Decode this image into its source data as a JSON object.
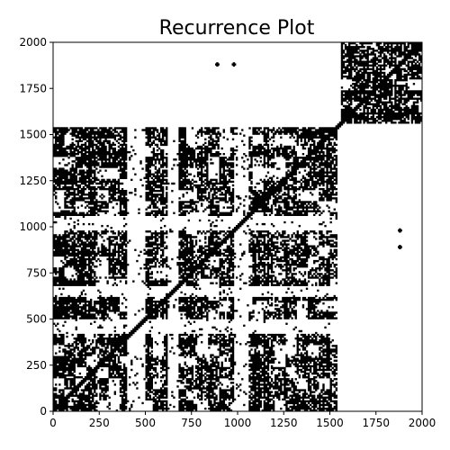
{
  "chart_data": {
    "type": "heatmap",
    "title": "Recurrence Plot",
    "xlabel": "",
    "ylabel": "",
    "xlim": [
      0,
      2000
    ],
    "ylim": [
      0,
      2000
    ],
    "x_ticks": [
      "0",
      "250",
      "500",
      "750",
      "1000",
      "1250",
      "1500",
      "1750",
      "2000"
    ],
    "y_ticks": [
      "0",
      "250",
      "500",
      "750",
      "1000",
      "1250",
      "1500",
      "1750",
      "2000"
    ],
    "grid": false,
    "legend": "none",
    "colormap": [
      "#ffffff",
      "#000000"
    ],
    "regimes": [
      {
        "range": [
          0,
          1540
        ],
        "texture": "dense"
      },
      {
        "range": [
          1560,
          2000
        ],
        "texture": "dense"
      }
    ],
    "sparse_rows": [
      [
        420,
        500
      ],
      [
        620,
        680
      ],
      [
        980,
        1060
      ]
    ],
    "sparse_cols": [
      [
        400,
        500
      ],
      [
        620,
        680
      ],
      [
        980,
        1060
      ]
    ],
    "isolated_clusters": [
      {
        "x": 890,
        "y": 1880
      },
      {
        "x": 980,
        "y": 1880
      },
      {
        "x": 1880,
        "y": 890
      },
      {
        "x": 1880,
        "y": 980
      }
    ]
  }
}
